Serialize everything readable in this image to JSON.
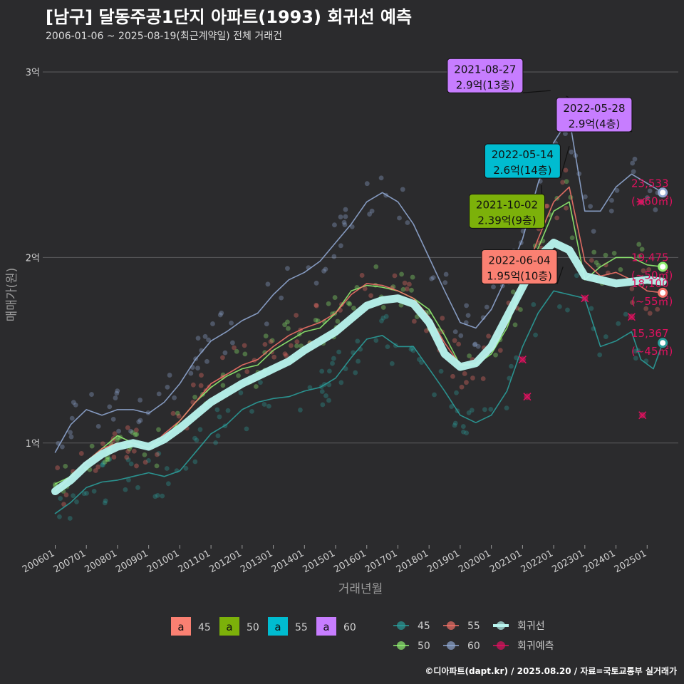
{
  "header": {
    "title": "[남구] 달동주공1단지 아파트(1993) 회귀선 예측",
    "subtitle": "2006-01-06 ~ 2025-08-19(최근계약일) 전체 거래건"
  },
  "footer": "©디아파트(dapt.kr) / 2025.08.20 / 자료=국토교통부 실거래가",
  "colors": {
    "s45": "#2a9d9a",
    "s50": "#90ee70",
    "s55": "#f07167",
    "s60": "#8fa6d0",
    "reg": "#b8f4ee",
    "pred": "#e0115f",
    "box45": "#fa8072",
    "box50": "#7cb10a",
    "box55": "#00bcd0",
    "box60": "#c77dff"
  },
  "chart_data": {
    "type": "line",
    "title": "[남구] 달동주공1단지 아파트(1993) 회귀선 예측",
    "subtitle": "2006-01-06 ~ 2025-08-19(최근계약일) 전체 거래건",
    "xlabel": "거래년월",
    "ylabel": "매매가(원)",
    "xlim": [
      2005.6,
      2026.0
    ],
    "ylim": [
      0.45,
      3.15
    ],
    "x_ticks": [
      {
        "x": 2006.0,
        "label": "200601"
      },
      {
        "x": 2007.0,
        "label": "200701"
      },
      {
        "x": 2008.0,
        "label": "200801"
      },
      {
        "x": 2009.0,
        "label": "200901"
      },
      {
        "x": 2010.0,
        "label": "201001"
      },
      {
        "x": 2011.0,
        "label": "201101"
      },
      {
        "x": 2012.0,
        "label": "201201"
      },
      {
        "x": 2013.0,
        "label": "201301"
      },
      {
        "x": 2014.0,
        "label": "201401"
      },
      {
        "x": 2015.0,
        "label": "201501"
      },
      {
        "x": 2016.0,
        "label": "201601"
      },
      {
        "x": 2017.0,
        "label": "201701"
      },
      {
        "x": 2018.0,
        "label": "201801"
      },
      {
        "x": 2019.0,
        "label": "201901"
      },
      {
        "x": 2020.0,
        "label": "202001"
      },
      {
        "x": 2021.0,
        "label": "202101"
      },
      {
        "x": 2022.0,
        "label": "202201"
      },
      {
        "x": 2023.0,
        "label": "202301"
      },
      {
        "x": 2024.0,
        "label": "202401"
      },
      {
        "x": 2025.0,
        "label": "202501"
      }
    ],
    "y_ticks": [
      {
        "y": 1,
        "label": "1억"
      },
      {
        "y": 2,
        "label": "2억"
      },
      {
        "y": 3,
        "label": "3억"
      }
    ],
    "grid": true,
    "legend_position": "bottom",
    "legend_box": [
      {
        "key": "box45",
        "letter": "a",
        "name": "45"
      },
      {
        "key": "box50",
        "letter": "a",
        "name": "50"
      },
      {
        "key": "box55",
        "letter": "a",
        "name": "55"
      },
      {
        "key": "box60",
        "letter": "a",
        "name": "60"
      }
    ],
    "legend_lines": [
      {
        "key": "s45",
        "name": "45",
        "kind": "line"
      },
      {
        "key": "s55",
        "name": "55",
        "kind": "line"
      },
      {
        "key": "reg",
        "name": "회귀선",
        "kind": "reg"
      },
      {
        "key": "s50",
        "name": "50",
        "kind": "line"
      },
      {
        "key": "s60",
        "name": "60",
        "kind": "line"
      },
      {
        "key": "pred",
        "name": "회귀예측",
        "kind": "pred"
      }
    ],
    "series": [
      {
        "name": "45",
        "key": "s45",
        "values": [
          [
            2006.0,
            0.62
          ],
          [
            2006.5,
            0.68
          ],
          [
            2007.0,
            0.76
          ],
          [
            2007.5,
            0.79
          ],
          [
            2008.0,
            0.8
          ],
          [
            2008.5,
            0.82
          ],
          [
            2009.0,
            0.84
          ],
          [
            2009.5,
            0.82
          ],
          [
            2010.0,
            0.85
          ],
          [
            2010.5,
            0.95
          ],
          [
            2011.0,
            1.05
          ],
          [
            2011.5,
            1.1
          ],
          [
            2012.0,
            1.18
          ],
          [
            2012.5,
            1.22
          ],
          [
            2013.0,
            1.24
          ],
          [
            2013.5,
            1.25
          ],
          [
            2014.0,
            1.28
          ],
          [
            2014.5,
            1.3
          ],
          [
            2015.0,
            1.35
          ],
          [
            2015.5,
            1.46
          ],
          [
            2016.0,
            1.56
          ],
          [
            2016.5,
            1.58
          ],
          [
            2017.0,
            1.52
          ],
          [
            2017.5,
            1.52
          ],
          [
            2018.0,
            1.4
          ],
          [
            2018.5,
            1.28
          ],
          [
            2019.0,
            1.15
          ],
          [
            2019.5,
            1.11
          ],
          [
            2020.0,
            1.15
          ],
          [
            2020.5,
            1.28
          ],
          [
            2021.0,
            1.52
          ],
          [
            2021.5,
            1.7
          ],
          [
            2022.0,
            1.82
          ],
          [
            2022.5,
            1.8
          ],
          [
            2023.0,
            1.78
          ],
          [
            2023.5,
            1.52
          ],
          [
            2024.0,
            1.55
          ],
          [
            2024.5,
            1.6
          ],
          [
            2024.8,
            1.45
          ],
          [
            2025.2,
            1.4
          ],
          [
            2025.5,
            1.54
          ]
        ]
      },
      {
        "name": "50",
        "key": "s50",
        "values": [
          [
            2006.0,
            0.78
          ],
          [
            2006.5,
            0.82
          ],
          [
            2007.0,
            0.9
          ],
          [
            2007.5,
            0.97
          ],
          [
            2008.0,
            1.04
          ],
          [
            2008.5,
            1.0
          ],
          [
            2009.0,
            0.97
          ],
          [
            2009.5,
            1.02
          ],
          [
            2010.0,
            1.12
          ],
          [
            2010.5,
            1.22
          ],
          [
            2011.0,
            1.3
          ],
          [
            2011.5,
            1.36
          ],
          [
            2012.0,
            1.4
          ],
          [
            2012.5,
            1.42
          ],
          [
            2013.0,
            1.5
          ],
          [
            2013.5,
            1.55
          ],
          [
            2014.0,
            1.6
          ],
          [
            2014.5,
            1.62
          ],
          [
            2015.0,
            1.7
          ],
          [
            2015.5,
            1.82
          ],
          [
            2016.0,
            1.85
          ],
          [
            2016.5,
            1.84
          ],
          [
            2017.0,
            1.82
          ],
          [
            2017.5,
            1.78
          ],
          [
            2018.0,
            1.72
          ],
          [
            2018.5,
            1.58
          ],
          [
            2019.0,
            1.42
          ],
          [
            2019.5,
            1.42
          ],
          [
            2020.0,
            1.48
          ],
          [
            2020.5,
            1.62
          ],
          [
            2021.0,
            1.85
          ],
          [
            2021.5,
            2.05
          ],
          [
            2022.0,
            2.25
          ],
          [
            2022.5,
            2.3
          ],
          [
            2023.0,
            1.88
          ],
          [
            2023.5,
            1.95
          ],
          [
            2024.0,
            2.0
          ],
          [
            2024.5,
            2.0
          ],
          [
            2025.0,
            1.96
          ],
          [
            2025.5,
            1.95
          ]
        ]
      },
      {
        "name": "55",
        "key": "s55",
        "values": [
          [
            2006.0,
            0.74
          ],
          [
            2006.5,
            0.82
          ],
          [
            2007.0,
            0.9
          ],
          [
            2007.5,
            0.97
          ],
          [
            2008.0,
            1.0
          ],
          [
            2008.5,
            1.0
          ],
          [
            2009.0,
            0.97
          ],
          [
            2009.5,
            1.05
          ],
          [
            2010.0,
            1.12
          ],
          [
            2010.5,
            1.22
          ],
          [
            2011.0,
            1.32
          ],
          [
            2011.5,
            1.37
          ],
          [
            2012.0,
            1.42
          ],
          [
            2012.5,
            1.45
          ],
          [
            2013.0,
            1.52
          ],
          [
            2013.5,
            1.58
          ],
          [
            2014.0,
            1.62
          ],
          [
            2014.5,
            1.65
          ],
          [
            2015.0,
            1.7
          ],
          [
            2015.5,
            1.8
          ],
          [
            2016.0,
            1.86
          ],
          [
            2016.5,
            1.85
          ],
          [
            2017.0,
            1.82
          ],
          [
            2017.5,
            1.78
          ],
          [
            2018.0,
            1.68
          ],
          [
            2018.5,
            1.54
          ],
          [
            2019.0,
            1.42
          ],
          [
            2019.5,
            1.43
          ],
          [
            2020.0,
            1.5
          ],
          [
            2020.5,
            1.64
          ],
          [
            2021.0,
            1.88
          ],
          [
            2021.5,
            2.1
          ],
          [
            2022.0,
            2.3
          ],
          [
            2022.5,
            2.38
          ],
          [
            2023.0,
            1.98
          ],
          [
            2023.5,
            1.9
          ],
          [
            2024.0,
            1.92
          ],
          [
            2024.5,
            1.88
          ],
          [
            2025.0,
            1.82
          ],
          [
            2025.5,
            1.81
          ]
        ]
      },
      {
        "name": "60",
        "key": "s60",
        "values": [
          [
            2006.0,
            0.95
          ],
          [
            2006.5,
            1.1
          ],
          [
            2007.0,
            1.18
          ],
          [
            2007.5,
            1.15
          ],
          [
            2008.0,
            1.18
          ],
          [
            2008.5,
            1.18
          ],
          [
            2009.0,
            1.16
          ],
          [
            2009.5,
            1.22
          ],
          [
            2010.0,
            1.32
          ],
          [
            2010.5,
            1.45
          ],
          [
            2011.0,
            1.55
          ],
          [
            2011.5,
            1.6
          ],
          [
            2012.0,
            1.66
          ],
          [
            2012.5,
            1.7
          ],
          [
            2013.0,
            1.8
          ],
          [
            2013.5,
            1.88
          ],
          [
            2014.0,
            1.92
          ],
          [
            2014.5,
            1.98
          ],
          [
            2015.0,
            2.08
          ],
          [
            2015.5,
            2.18
          ],
          [
            2016.0,
            2.3
          ],
          [
            2016.5,
            2.35
          ],
          [
            2017.0,
            2.3
          ],
          [
            2017.5,
            2.18
          ],
          [
            2018.0,
            2.0
          ],
          [
            2018.5,
            1.82
          ],
          [
            2019.0,
            1.65
          ],
          [
            2019.5,
            1.62
          ],
          [
            2020.0,
            1.72
          ],
          [
            2020.5,
            1.9
          ],
          [
            2021.0,
            2.1
          ],
          [
            2021.5,
            2.4
          ],
          [
            2022.0,
            2.62
          ],
          [
            2022.5,
            2.75
          ],
          [
            2023.0,
            2.25
          ],
          [
            2023.5,
            2.25
          ],
          [
            2024.0,
            2.38
          ],
          [
            2024.5,
            2.45
          ],
          [
            2025.0,
            2.4
          ],
          [
            2025.5,
            2.35
          ]
        ]
      },
      {
        "name": "회귀선",
        "key": "reg",
        "values": [
          [
            2006.0,
            0.74
          ],
          [
            2006.5,
            0.8
          ],
          [
            2007.0,
            0.88
          ],
          [
            2007.5,
            0.94
          ],
          [
            2008.0,
            0.98
          ],
          [
            2008.5,
            1.0
          ],
          [
            2009.0,
            0.98
          ],
          [
            2009.5,
            1.02
          ],
          [
            2010.0,
            1.08
          ],
          [
            2010.5,
            1.15
          ],
          [
            2011.0,
            1.22
          ],
          [
            2011.5,
            1.27
          ],
          [
            2012.0,
            1.32
          ],
          [
            2012.5,
            1.36
          ],
          [
            2013.0,
            1.4
          ],
          [
            2013.5,
            1.44
          ],
          [
            2014.0,
            1.5
          ],
          [
            2014.5,
            1.55
          ],
          [
            2015.0,
            1.6
          ],
          [
            2015.5,
            1.67
          ],
          [
            2016.0,
            1.74
          ],
          [
            2016.5,
            1.77
          ],
          [
            2017.0,
            1.78
          ],
          [
            2017.5,
            1.75
          ],
          [
            2018.0,
            1.65
          ],
          [
            2018.5,
            1.48
          ],
          [
            2019.0,
            1.41
          ],
          [
            2019.5,
            1.43
          ],
          [
            2020.0,
            1.52
          ],
          [
            2020.5,
            1.68
          ],
          [
            2021.0,
            1.84
          ],
          [
            2021.5,
            2.0
          ],
          [
            2022.0,
            2.08
          ],
          [
            2022.5,
            2.04
          ],
          [
            2023.0,
            1.9
          ],
          [
            2023.5,
            1.88
          ],
          [
            2024.0,
            1.86
          ],
          [
            2024.5,
            1.87
          ],
          [
            2025.0,
            1.88
          ],
          [
            2025.5,
            1.87
          ]
        ]
      }
    ],
    "predictions": [
      [
        2021.0,
        1.45
      ],
      [
        2021.15,
        1.25
      ],
      [
        2023.0,
        1.78
      ],
      [
        2024.5,
        1.68
      ],
      [
        2024.8,
        2.3
      ],
      [
        2024.85,
        1.15
      ]
    ],
    "callouts": [
      {
        "date": "2021-08-27",
        "value": "2.9억(13층)",
        "color_key": "box60",
        "point": [
          2021.9,
          2.9
        ],
        "box_x": 2019.8,
        "box_y": 2.98
      },
      {
        "date": "2022-05-28",
        "value": "2.9억(4층)",
        "color_key": "box60",
        "point": [
          2022.4,
          2.87
        ],
        "box_x": 2023.3,
        "box_y": 2.77
      },
      {
        "date": "2022-05-14",
        "value": "2.6억(14층)",
        "color_key": "box55",
        "point": [
          2022.5,
          2.6
        ],
        "box_x": 2021.0,
        "box_y": 2.52
      },
      {
        "date": "2021-10-02",
        "value": "2.39억(9층)",
        "color_key": "box50",
        "point": [
          2021.6,
          2.39
        ],
        "box_x": 2020.5,
        "box_y": 2.25
      },
      {
        "date": "2022-06-04",
        "value": "1.95억(10층)",
        "color_key": "box45",
        "point": [
          2022.3,
          1.95
        ],
        "box_x": 2020.9,
        "box_y": 1.95
      }
    ],
    "end_labels": [
      {
        "value": "23,533",
        "area": "(~60㎡)",
        "color_key": "s60",
        "y": 2.35
      },
      {
        "value": "19,475",
        "area": "(~50㎡)",
        "color_key": "s50",
        "y": 1.95
      },
      {
        "value": "18,100",
        "area": "(~55㎡)",
        "color_key": "s55",
        "y": 1.81
      },
      {
        "value": "15,367",
        "area": "(~45㎡)",
        "color_key": "s45",
        "y": 1.54
      }
    ]
  }
}
